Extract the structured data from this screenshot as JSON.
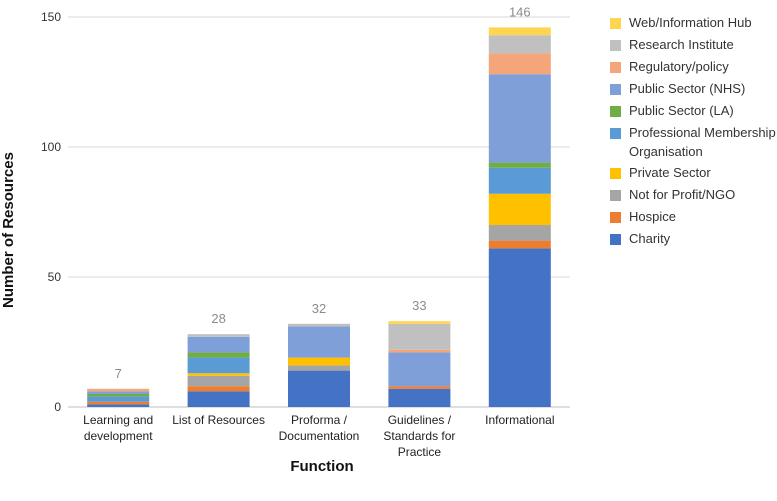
{
  "chart_data": {
    "type": "bar",
    "stacked": true,
    "title": "",
    "xlabel": "Function",
    "ylabel": "Number of Resources",
    "ylim": [
      0,
      150
    ],
    "yticks": [
      0,
      50,
      100,
      150
    ],
    "grid": true,
    "legend_position": "right",
    "categories": [
      [
        "Learning and",
        "development"
      ],
      [
        "List of Resources"
      ],
      [
        "Proforma /",
        "Documentation"
      ],
      [
        "Guidelines /",
        "Standards for",
        "Practice"
      ],
      [
        "Informational"
      ]
    ],
    "totals": [
      7,
      28,
      32,
      33,
      146
    ],
    "series": [
      {
        "name": "Charity",
        "color": "#4472C4",
        "values": [
          1,
          6,
          14,
          7,
          61
        ]
      },
      {
        "name": "Hospice",
        "color": "#ED7D31",
        "values": [
          1,
          2,
          0,
          1,
          3
        ]
      },
      {
        "name": "Not for Profit/NGO",
        "color": "#A5A5A5",
        "values": [
          0,
          4,
          2,
          0,
          6
        ]
      },
      {
        "name": "Private Sector",
        "color": "#FFC000",
        "values": [
          0,
          1,
          3,
          0,
          12
        ]
      },
      {
        "name": "Professional Membership Organisation",
        "color": "#5B9BD5",
        "values": [
          2,
          6,
          0,
          0,
          10
        ]
      },
      {
        "name": "Public Sector (LA)",
        "color": "#70AD47",
        "values": [
          1,
          2,
          0,
          0,
          2
        ]
      },
      {
        "name": "Public Sector (NHS)",
        "color": "#7F9FD9",
        "values": [
          1,
          6,
          12,
          13,
          34
        ]
      },
      {
        "name": "Regulatory/policy",
        "color": "#F4A57A",
        "values": [
          1,
          0,
          0,
          1,
          8
        ]
      },
      {
        "name": "Research Institute",
        "color": "#C0C0C0",
        "values": [
          0,
          1,
          1,
          10,
          7
        ]
      },
      {
        "name": "Web/Information Hub",
        "color": "#FFD54F",
        "values": [
          0,
          0,
          0,
          1,
          3
        ]
      }
    ],
    "legend_order": [
      [
        "Web/Information Hub"
      ],
      [
        "Research Institute"
      ],
      [
        "Regulatory/policy"
      ],
      [
        "Public Sector (NHS)"
      ],
      [
        "Public Sector (LA)"
      ],
      [
        "Professional Membership",
        "Organisation"
      ],
      [
        "Private Sector"
      ],
      [
        "Not for Profit/NGO"
      ],
      [
        "Hospice"
      ],
      [
        "Charity"
      ]
    ],
    "legend_colors": [
      "#FFD54F",
      "#C0C0C0",
      "#F4A57A",
      "#7F9FD9",
      "#70AD47",
      "#5B9BD5",
      "#FFC000",
      "#A5A5A5",
      "#ED7D31",
      "#4472C4"
    ]
  }
}
